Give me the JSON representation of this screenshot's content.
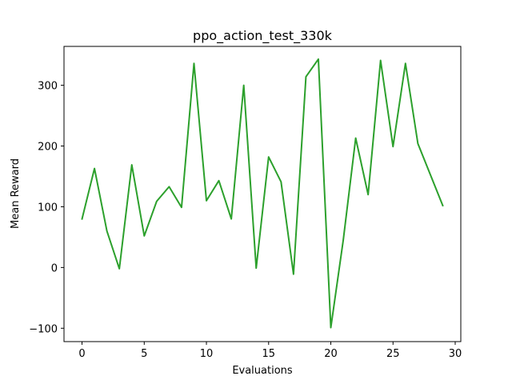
{
  "chart_data": {
    "type": "line",
    "title": "ppo_action_test_330k",
    "xlabel": "Evaluations",
    "ylabel": "Mean Reward",
    "xlim": [
      -1.45,
      30.45
    ],
    "ylim": [
      -122,
      364
    ],
    "xticks": [
      0,
      5,
      10,
      15,
      20,
      25,
      30
    ],
    "xtick_labels": [
      "0",
      "5",
      "10",
      "15",
      "20",
      "25",
      "30"
    ],
    "yticks": [
      -100,
      0,
      100,
      200,
      300
    ],
    "ytick_labels": [
      "−100",
      "0",
      "100",
      "200",
      "300"
    ],
    "grid": false,
    "legend": "none",
    "series": [
      {
        "color": "#2ca02c",
        "x": [
          0,
          1,
          2,
          3,
          4,
          5,
          6,
          7,
          8,
          9,
          10,
          11,
          12,
          13,
          14,
          15,
          16,
          17,
          18,
          19,
          20,
          21,
          22,
          23,
          24,
          25,
          26,
          27,
          28,
          29
        ],
        "values": [
          80,
          163,
          60,
          -2,
          169,
          52,
          109,
          133,
          99,
          336,
          110,
          143,
          80,
          300,
          -1,
          182,
          141,
          -11,
          314,
          343,
          -99,
          45,
          213,
          120,
          341,
          199,
          336,
          204,
          153,
          102
        ]
      }
    ]
  }
}
